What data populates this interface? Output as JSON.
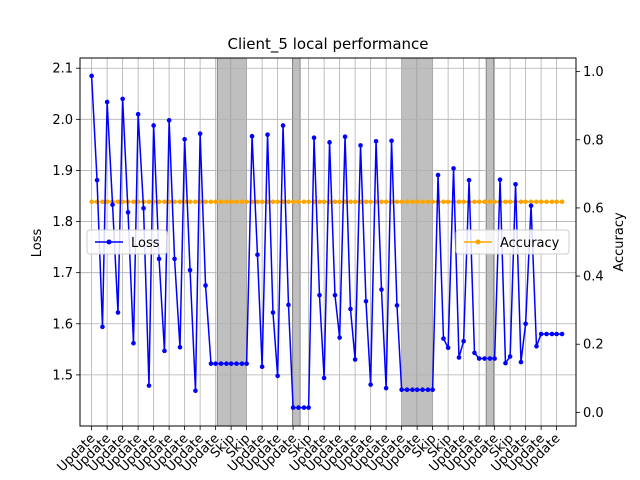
{
  "chart_data": {
    "type": "line",
    "title": "Client_5 local performance",
    "left_axis": {
      "label": "Loss",
      "ylim": [
        1.4,
        2.12
      ],
      "ticks": [
        "1.5",
        "1.6",
        "1.7",
        "1.8",
        "1.9",
        "2.0",
        "2.1"
      ],
      "tick_values": [
        1.5,
        1.6,
        1.7,
        1.8,
        1.9,
        2.0,
        2.1
      ]
    },
    "right_axis": {
      "label": "Accuracy",
      "ylim": [
        -0.04,
        1.04
      ],
      "ticks": [
        "0.0",
        "0.2",
        "0.4",
        "0.6",
        "0.8",
        "1.0"
      ],
      "tick_values": [
        0.0,
        0.2,
        0.4,
        0.6,
        0.8,
        1.0
      ]
    },
    "x_tick_labels": [
      "Update",
      "Update",
      "Update",
      "Update",
      "Update",
      "Update",
      "Update",
      "Update",
      "Update",
      "Skip",
      "Skip",
      "Update",
      "Update",
      "Update",
      "Skip",
      "Update",
      "Update",
      "Update",
      "Update",
      "Update",
      "Update",
      "Update",
      "Skip",
      "Skip",
      "Update",
      "Update",
      "Update",
      "Skip",
      "Update",
      "Update",
      "Update"
    ],
    "x_tick_positions": [
      0,
      2,
      4,
      6,
      8,
      10,
      12,
      14,
      16,
      18,
      20,
      22,
      24,
      26,
      28,
      30,
      32,
      34,
      36,
      38,
      40,
      42,
      44,
      46,
      48,
      50,
      52,
      54,
      56,
      58,
      60
    ],
    "xlim": [
      -1.5,
      62.5
    ],
    "skip_spans": [
      [
        16.2,
        18
      ],
      [
        18,
        20
      ],
      [
        25.9,
        26.9
      ],
      [
        40,
        42
      ],
      [
        42,
        44
      ],
      [
        50.9,
        51.9
      ]
    ],
    "grid": true,
    "series": [
      {
        "name": "Loss",
        "color": "#0000ff",
        "axis": "left",
        "x": [
          0,
          0.7,
          1.4,
          2,
          2.7,
          3.4,
          4,
          4.7,
          5.4,
          6,
          6.7,
          7.4,
          8,
          8.7,
          9.4,
          10,
          10.7,
          11.4,
          12,
          12.7,
          13.4,
          14,
          14.7,
          15.4,
          16,
          16.7,
          17.4,
          18,
          18.7,
          19.4,
          20,
          20.7,
          21.4,
          22,
          22.7,
          23.4,
          24,
          24.7,
          25.4,
          26,
          26.7,
          27.4,
          28,
          28.7,
          29.4,
          30,
          30.7,
          31.4,
          32,
          32.7,
          33.4,
          34,
          34.7,
          35.4,
          36,
          36.7,
          37.4,
          38,
          38.7,
          39.4,
          40,
          40.7,
          41.4,
          42,
          42.7,
          43.4,
          44,
          44.7,
          45.4,
          46,
          46.7,
          47.4,
          48,
          48.7,
          49.4,
          50,
          50.7,
          51.4,
          52,
          52.7,
          53.4,
          54,
          54.7,
          55.4,
          56,
          56.7,
          57.4,
          58,
          58.7,
          59.4,
          60,
          60.7
        ],
        "values": [
          2.085,
          1.881,
          1.594,
          2.034,
          1.833,
          1.622,
          2.04,
          1.818,
          1.562,
          2.01,
          1.826,
          1.479,
          1.988,
          1.727,
          1.547,
          1.998,
          1.727,
          1.554,
          1.961,
          1.705,
          1.469,
          1.972,
          1.675,
          1.522,
          1.522,
          1.522,
          1.522,
          1.522,
          1.522,
          1.522,
          1.522,
          1.967,
          1.735,
          1.516,
          1.97,
          1.622,
          1.498,
          1.988,
          1.637,
          1.436,
          1.436,
          1.436,
          1.436,
          1.964,
          1.656,
          1.494,
          1.955,
          1.656,
          1.573,
          1.966,
          1.629,
          1.53,
          1.949,
          1.644,
          1.481,
          1.957,
          1.667,
          1.474,
          1.958,
          1.636,
          1.471,
          1.471,
          1.471,
          1.471,
          1.471,
          1.471,
          1.471,
          1.891,
          1.571,
          1.553,
          1.904,
          1.534,
          1.566,
          1.881,
          1.543,
          1.532,
          1.532,
          1.532,
          1.532,
          1.882,
          1.523,
          1.536,
          1.873,
          1.525,
          1.6,
          1.831,
          1.556,
          1.58,
          1.58,
          1.58,
          1.58,
          1.58
        ]
      },
      {
        "name": "Accuracy",
        "color": "#ffa500",
        "axis": "right",
        "x": [
          0,
          0.7,
          1.4,
          2,
          2.7,
          3.4,
          4,
          4.7,
          5.4,
          6,
          6.7,
          7.4,
          8,
          8.7,
          9.4,
          10,
          10.7,
          11.4,
          12,
          12.7,
          13.4,
          14,
          14.7,
          15.4,
          16,
          16.7,
          17.4,
          18,
          18.7,
          19.4,
          20,
          20.7,
          21.4,
          22,
          22.7,
          23.4,
          24,
          24.7,
          25.4,
          26,
          26.7,
          27.4,
          28,
          28.7,
          29.4,
          30,
          30.7,
          31.4,
          32,
          32.7,
          33.4,
          34,
          34.7,
          35.4,
          36,
          36.7,
          37.4,
          38,
          38.7,
          39.4,
          40,
          40.7,
          41.4,
          42,
          42.7,
          43.4,
          44,
          44.7,
          45.4,
          46,
          46.7,
          47.4,
          48,
          48.7,
          49.4,
          50,
          50.7,
          51.4,
          52,
          52.7,
          53.4,
          54,
          54.7,
          55.4,
          56,
          56.7,
          57.4,
          58,
          58.7,
          59.4,
          60,
          60.7
        ],
        "constant": 0.618
      }
    ],
    "legends": [
      {
        "name": "Loss",
        "position": "center-left"
      },
      {
        "name": "Accuracy",
        "position": "center-right"
      }
    ]
  }
}
